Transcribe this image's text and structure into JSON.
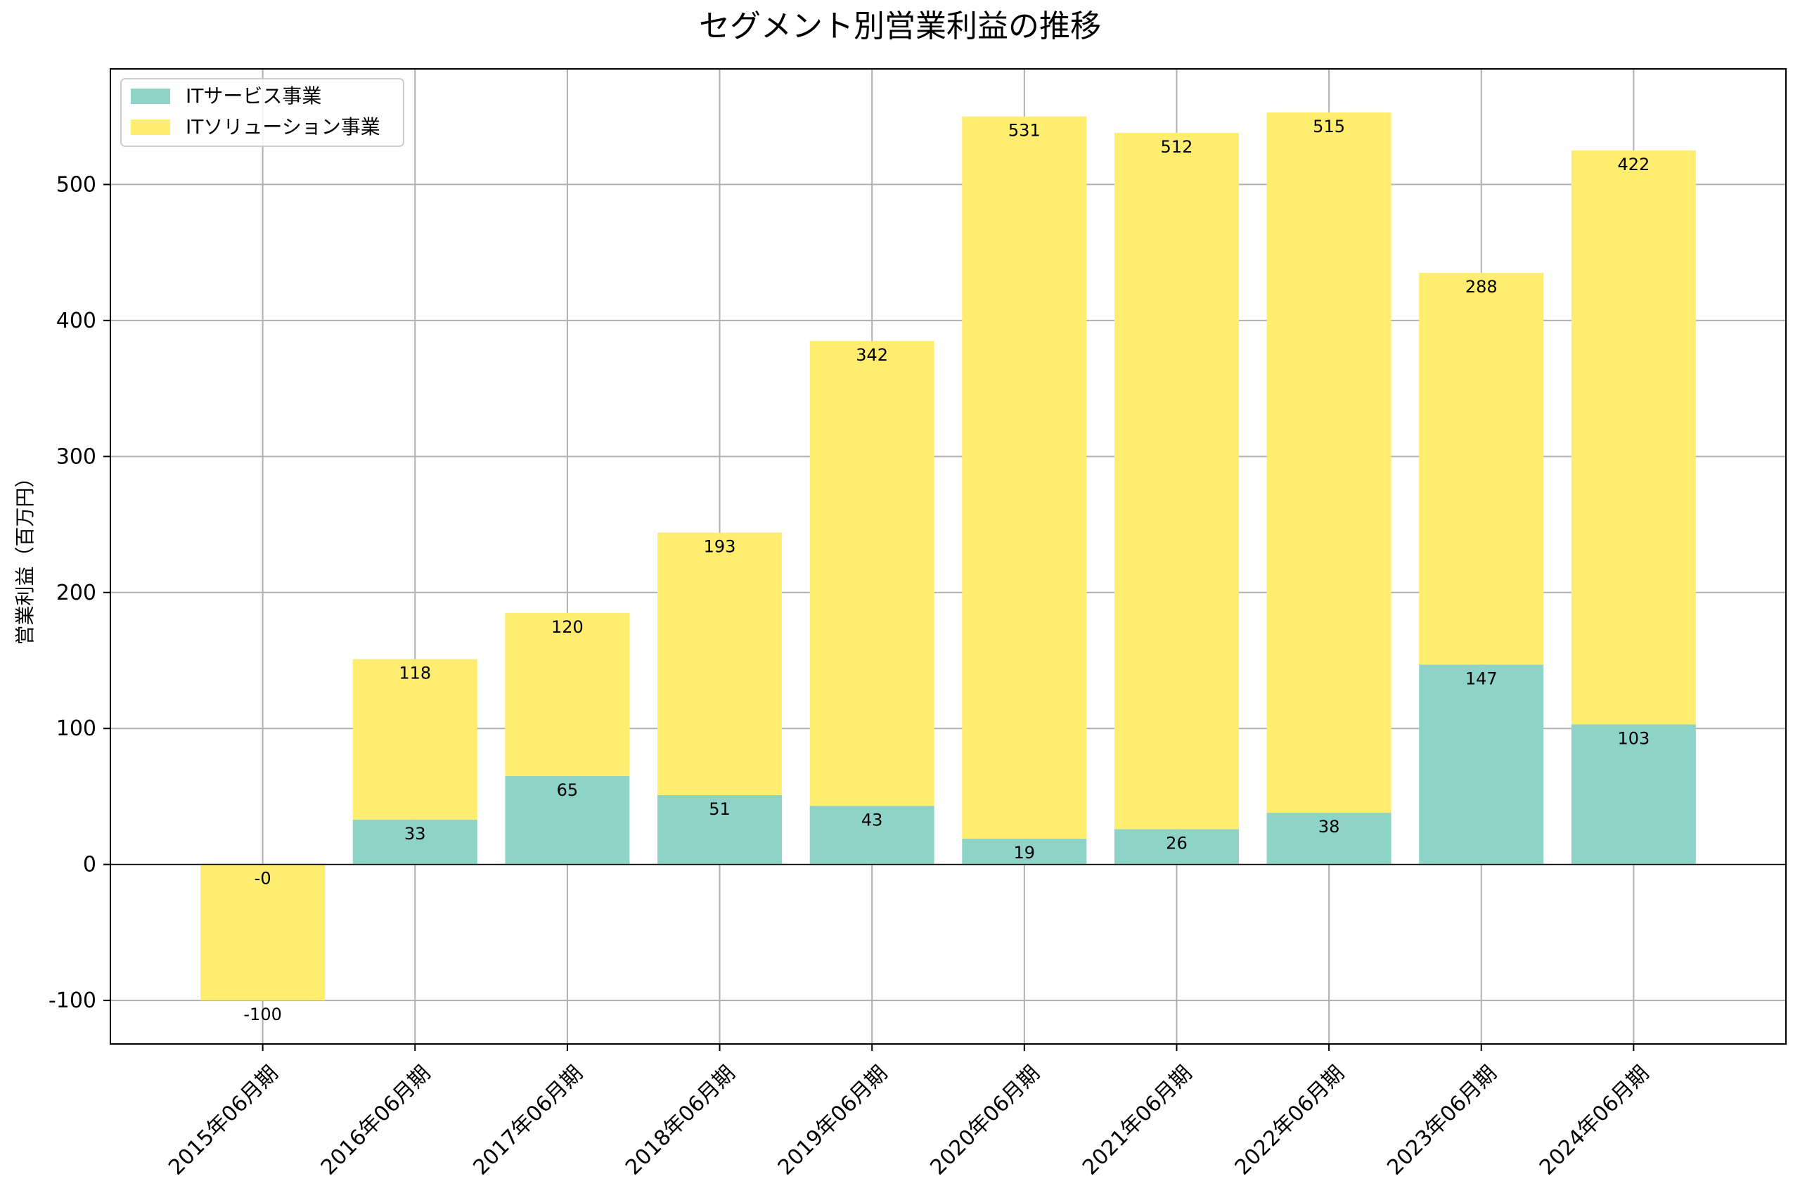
{
  "chart_data": {
    "type": "bar",
    "stacked": true,
    "title": "セグメント別営業利益の推移",
    "xlabel": "",
    "ylabel": "営業利益（百万円）",
    "ylim": [
      -132,
      585
    ],
    "yticks": [
      -100,
      0,
      100,
      200,
      300,
      400,
      500
    ],
    "grid": true,
    "legend_position": "top-left",
    "categories": [
      "2015年06月期",
      "2016年06月期",
      "2017年06月期",
      "2018年06月期",
      "2019年06月期",
      "2020年06月期",
      "2021年06月期",
      "2022年06月期",
      "2023年06月期",
      "2024年06月期"
    ],
    "series": [
      {
        "name": "ITサービス事業",
        "color": "#8dd3c7",
        "values": [
          0,
          33,
          65,
          51,
          43,
          19,
          26,
          38,
          147,
          103
        ],
        "labels": [
          "-0",
          "33",
          "65",
          "51",
          "43",
          "19",
          "26",
          "38",
          "147",
          "103"
        ]
      },
      {
        "name": "ITソリューション事業",
        "color": "#ffed6f",
        "values": [
          -100,
          118,
          120,
          193,
          342,
          531,
          512,
          515,
          288,
          422
        ],
        "labels": [
          "-100",
          "118",
          "120",
          "193",
          "342",
          "531",
          "512",
          "515",
          "288",
          "422"
        ]
      }
    ]
  }
}
